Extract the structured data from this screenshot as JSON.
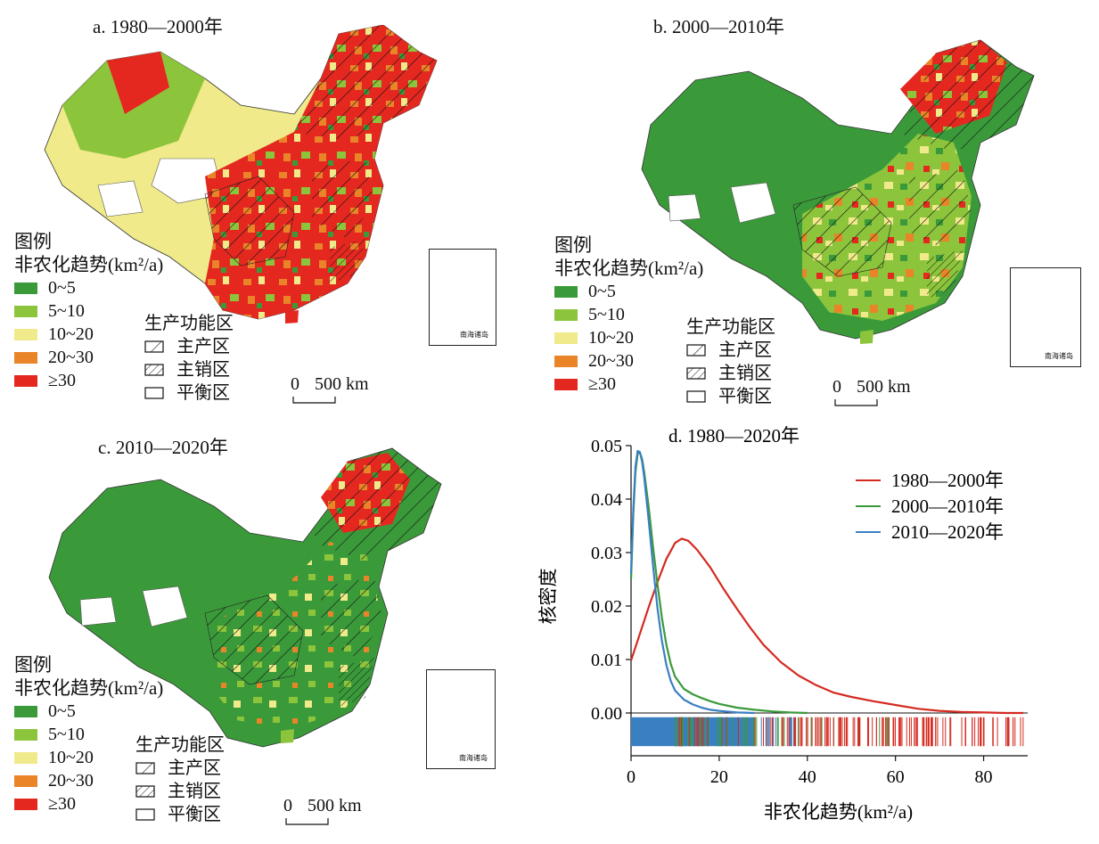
{
  "panels": [
    {
      "id": "a",
      "title": "a. 1980—2000年"
    },
    {
      "id": "b",
      "title": "b. 2000—2010年"
    },
    {
      "id": "c",
      "title": "c. 2010—2020年"
    }
  ],
  "legend": {
    "title": "图例",
    "subtitle": "非农化趋势(km²/a)",
    "classes": [
      {
        "label": "0~5",
        "color": "#3a9a3a"
      },
      {
        "label": "5~10",
        "color": "#8cc43c"
      },
      {
        "label": "10~20",
        "color": "#f0ea8a"
      },
      {
        "label": "20~30",
        "color": "#ea8428"
      },
      {
        "label": "≥30",
        "color": "#e42820"
      }
    ],
    "zones_title": "生产功能区",
    "zones": [
      {
        "label": "主产区",
        "pattern": "sparse-hatch"
      },
      {
        "label": "主销区",
        "pattern": "dense-hatch"
      },
      {
        "label": "平衡区",
        "pattern": "empty"
      }
    ],
    "scale": {
      "zero": "0",
      "value": "500 km"
    },
    "inset_label": "南海诸岛"
  },
  "chart_data": {
    "type": "line",
    "title": "d. 1980—2020年",
    "xlabel": "非农化趋势(km²/a)",
    "ylabel": "核密度",
    "xlim": [
      0,
      90
    ],
    "ylim": [
      -0.008,
      0.05
    ],
    "xticks": [
      "0",
      "20",
      "40",
      "60",
      "80"
    ],
    "yticks": [
      "0.00",
      "0.01",
      "0.02",
      "0.03",
      "0.04",
      "0.05"
    ],
    "legend_position": "top-right",
    "series": [
      {
        "name": "1980—2000年",
        "color": "#d42a20",
        "x": [
          0,
          2,
          4,
          6,
          8,
          10,
          11.5,
          13,
          15,
          18,
          21,
          24,
          27,
          30,
          34,
          38,
          42,
          46,
          50,
          55,
          60,
          65,
          70,
          75,
          80,
          85,
          89
        ],
        "y": [
          0.0098,
          0.0148,
          0.0198,
          0.0245,
          0.0288,
          0.0318,
          0.0326,
          0.0322,
          0.0305,
          0.0272,
          0.0232,
          0.0195,
          0.016,
          0.0128,
          0.0095,
          0.007,
          0.0052,
          0.0038,
          0.003,
          0.0022,
          0.0015,
          0.0008,
          0.0004,
          0.0002,
          0.0001,
          0.0,
          0.0
        ]
      },
      {
        "name": "2000—2010年",
        "color": "#3a9a3a",
        "x": [
          0,
          0.5,
          1,
          1.5,
          2,
          2.5,
          3,
          4,
          5,
          6,
          7,
          8,
          9,
          10,
          12,
          14,
          16,
          18,
          20,
          24,
          28,
          32,
          36,
          40
        ],
        "y": [
          0.025,
          0.037,
          0.045,
          0.0485,
          0.0487,
          0.0475,
          0.045,
          0.0385,
          0.031,
          0.024,
          0.0178,
          0.0128,
          0.0092,
          0.0068,
          0.0045,
          0.0035,
          0.0028,
          0.0022,
          0.0017,
          0.001,
          0.0006,
          0.0003,
          0.0001,
          0.0
        ]
      },
      {
        "name": "2010—2020年",
        "color": "#3a7fc2",
        "x": [
          0,
          0.5,
          1,
          1.5,
          2,
          2.5,
          3,
          4,
          5,
          6,
          7,
          8,
          9,
          10,
          12,
          14,
          16,
          18,
          20,
          24,
          28
        ],
        "y": [
          0.026,
          0.038,
          0.046,
          0.049,
          0.0488,
          0.047,
          0.044,
          0.036,
          0.0275,
          0.0195,
          0.0135,
          0.009,
          0.006,
          0.0042,
          0.0025,
          0.0016,
          0.001,
          0.0006,
          0.0004,
          0.0001,
          0.0
        ]
      }
    ]
  }
}
